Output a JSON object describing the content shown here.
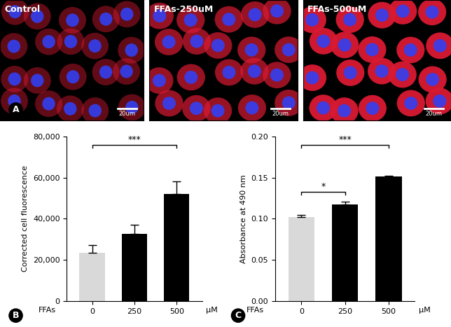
{
  "images": {
    "panel": "A",
    "scale_bar": "20um",
    "titles": [
      "Control",
      "FFAs-250uM",
      "FFAs-500uM"
    ]
  },
  "chart_data": [
    {
      "type": "bar",
      "panel": "B",
      "y_label": "Corrected cell fluorescence",
      "categories": [
        "0",
        "250",
        "500"
      ],
      "values": [
        23500,
        32500,
        52000
      ],
      "errors": [
        3800,
        4500,
        6000
      ],
      "colors": [
        "#d9d9d9",
        "#000000",
        "#000000"
      ],
      "ylim": [
        0,
        80000
      ],
      "yticks": [
        0,
        {
          "value": 20000,
          "label": "20,000"
        },
        {
          "value": 40000,
          "label": "40,000"
        },
        {
          "value": 60000,
          "label": "60,000"
        },
        {
          "value": 80000,
          "label": "80,000"
        }
      ],
      "annotations": [
        "FFAs",
        "μM"
      ],
      "significance": [
        {
          "from": "0",
          "to": "500",
          "label": "***"
        }
      ],
      "grid": false
    },
    {
      "type": "bar",
      "panel": "C",
      "y_label": "Absorbance at 490 nm",
      "categories": [
        "0",
        "250",
        "500"
      ],
      "values": [
        0.102,
        0.117,
        0.151
      ],
      "errors": [
        0.003,
        0.004,
        0.001
      ],
      "colors": [
        "#d9d9d9",
        "#000000",
        "#000000"
      ],
      "ylim": [
        0,
        0.2
      ],
      "yticks": [
        {
          "value": 0,
          "label": "0.00"
        },
        0.05,
        {
          "value": 0.1,
          "label": "0.10"
        },
        0.15,
        {
          "value": 0.2,
          "label": "0.20"
        }
      ],
      "annotations": [
        "FFAs",
        "μM"
      ],
      "significance": [
        {
          "from": "0",
          "to": "250",
          "label": "*"
        },
        {
          "from": "0",
          "to": "500",
          "label": "***"
        }
      ],
      "grid": false
    }
  ]
}
